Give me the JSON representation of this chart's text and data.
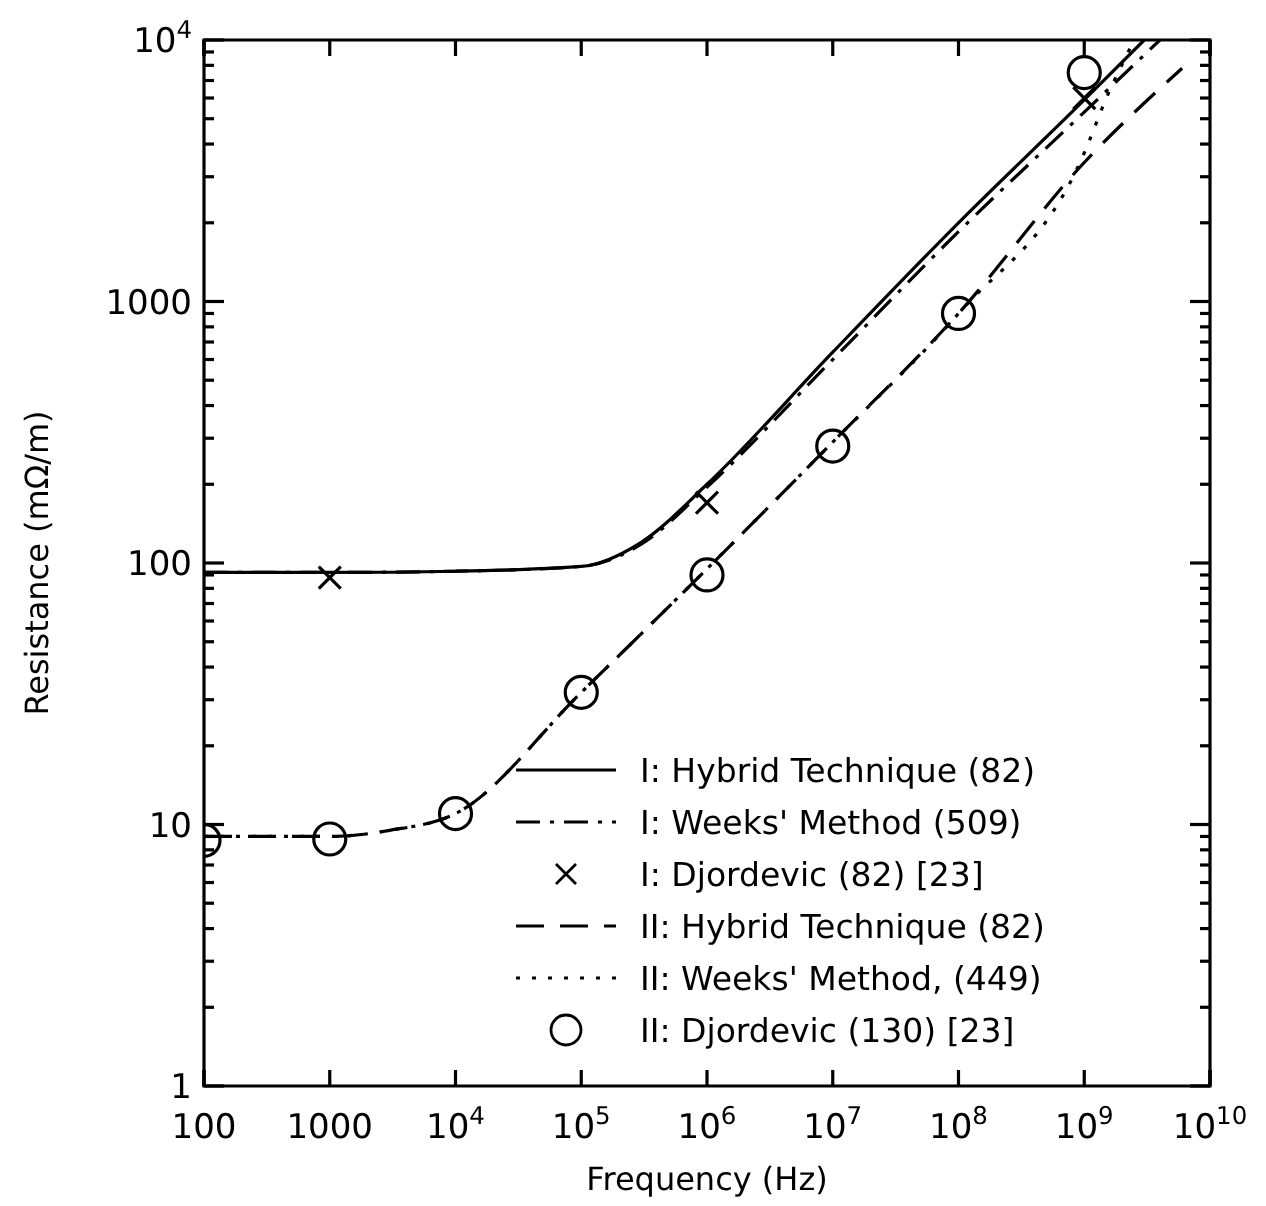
{
  "chart_data": {
    "type": "line",
    "xlabel": "Frequency (Hz)",
    "ylabel": "Resistance (mΩ/m)",
    "log": "xy",
    "grid": false,
    "legend": "bottom right",
    "xlim": [
      100,
      10000000000
    ],
    "ylim": [
      1,
      10000
    ],
    "xticks": [
      100,
      1000,
      {
        "value": 10000,
        "label": "10$^{4}$"
      },
      {
        "value": 100000,
        "label": "10$^{5}$"
      },
      {
        "value": 1000000,
        "label": "10$^{6}$"
      },
      {
        "value": 10000000,
        "label": "10$^{7}$"
      },
      {
        "value": 100000000,
        "label": "10$^{8}$"
      },
      {
        "value": 1000000000,
        "label": "10$^{9}$"
      },
      {
        "value": 10000000000,
        "label": "10$^{10}$"
      }
    ],
    "yticks": [
      1,
      {
        "value": 2,
        "label": null
      },
      {
        "value": 3,
        "label": null
      },
      {
        "value": 4,
        "label": null
      },
      {
        "value": 5,
        "label": null
      },
      {
        "value": 6,
        "label": null
      },
      {
        "value": 7,
        "label": null
      },
      {
        "value": 8,
        "label": null
      },
      {
        "value": 9,
        "label": null
      },
      10,
      {
        "value": 20,
        "label": null
      },
      {
        "value": 30,
        "label": null
      },
      {
        "value": 40,
        "label": null
      },
      {
        "value": 50,
        "label": null
      },
      {
        "value": 60,
        "label": null
      },
      {
        "value": 70,
        "label": null
      },
      {
        "value": 80,
        "label": null
      },
      {
        "value": 90,
        "label": null
      },
      100,
      {
        "value": 200,
        "label": null
      },
      {
        "value": 300,
        "label": null
      },
      {
        "value": 400,
        "label": null
      },
      {
        "value": 500,
        "label": null
      },
      {
        "value": 600,
        "label": null
      },
      {
        "value": 700,
        "label": null
      },
      {
        "value": 800,
        "label": null
      },
      {
        "value": 900,
        "label": null
      },
      1000,
      {
        "value": 2000,
        "label": null
      },
      {
        "value": 3000,
        "label": null
      },
      {
        "value": 4000,
        "label": null
      },
      {
        "value": 5000,
        "label": null
      },
      {
        "value": 6000,
        "label": null
      },
      {
        "value": 7000,
        "label": null
      },
      {
        "value": 8000,
        "label": null
      },
      {
        "value": 9000,
        "label": null
      },
      {
        "value": 10000,
        "label": "10$^{4}$"
      }
    ],
    "series": [
      {
        "name": "I: Hybrid Technique (82)",
        "line_style": "solid",
        "marker": "none",
        "color": "#000000",
        "x": [
          100,
          1000,
          10000,
          100000,
          300000,
          1000000,
          10000000,
          100000000,
          1000000000,
          3000000000
        ],
        "values": [
          92,
          92,
          93,
          97,
          120,
          200,
          640,
          2000,
          5900,
          10000
        ]
      },
      {
        "name": "I: Weeks' Method (509)",
        "line_style": "dashdot",
        "marker": "none",
        "color": "#000000",
        "x": [
          100,
          1000,
          10000,
          100000,
          300000,
          1000000,
          10000000,
          100000000,
          1000000000,
          4000000000
        ],
        "values": [
          92,
          92,
          93,
          97,
          118,
          195,
          600,
          1850,
          5300,
          10000
        ]
      },
      {
        "name": "I: Djordevic (82) [23]",
        "type": "scatter",
        "marker": "cross",
        "color": "#000000",
        "x": [
          1000,
          1000000,
          1000000000
        ],
        "values": [
          88,
          170,
          6000
        ]
      },
      {
        "name": "II: Hybrid Technique (82)",
        "line_style": "dashed",
        "marker": "none",
        "color": "#000000",
        "x": [
          100,
          1000,
          3000,
          10000,
          100000,
          1000000,
          10000000,
          100000000,
          1000000000,
          6000000000
        ],
        "values": [
          9,
          9,
          9.5,
          11,
          32,
          95,
          290,
          900,
          3400,
          7800
        ]
      },
      {
        "name": "II: Weeks' Method, (449)",
        "line_style": "dotted",
        "marker": "none",
        "color": "#000000",
        "x": [
          100,
          1000,
          3000,
          10000,
          100000,
          1000000,
          10000000,
          100000000,
          1000000000,
          1500000000,
          2500000000
        ],
        "values": [
          9,
          9,
          9.5,
          11,
          32,
          95,
          290,
          900,
          3700,
          6000,
          10000
        ]
      },
      {
        "name": "II: Djordevic (130) [23]",
        "type": "scatter",
        "marker": "circle",
        "color": "#000000",
        "x": [
          100,
          1000,
          10000,
          100000,
          1000000,
          10000000,
          100000000,
          1000000000
        ],
        "values": [
          8.7,
          8.8,
          11,
          32,
          90,
          280,
          900,
          7500
        ]
      }
    ]
  }
}
